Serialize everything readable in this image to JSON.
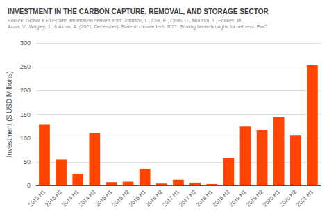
{
  "chart_data": {
    "type": "bar",
    "title": "INVESTMENT IN THE CARBON CAPTURE, REMOVAL, AND STORAGE SECTOR",
    "annotations": [
      "Source: Global X ETFs with information derived from: Johnson, L., Cox, E., Chan, D., Moussa, T., Foakes, M.,",
      "Arora, V., Wrigley, J., & Azhar, A. (2021, December). State of climate tech 2021: Scaling breakthroughs for net zero. PwC."
    ],
    "ylabel": "Investment ($ USD Millions)",
    "categories": [
      "2013 H1",
      "2013 H2",
      "2014 H1",
      "2014 H2",
      "2015 H1",
      "2015 H2",
      "2016 H1",
      "2016 H2",
      "2017 H1",
      "2017 H2",
      "2018 H1",
      "2018 H2",
      "2019 H1",
      "2019 H2",
      "2020 H1",
      "2020 H2",
      "2021 H1"
    ],
    "values": [
      128,
      55,
      25,
      110,
      7,
      8,
      35,
      4,
      12,
      6,
      3,
      58,
      124,
      117,
      145,
      105,
      253
    ],
    "color": "#FF4500",
    "ylim": [
      0,
      300
    ],
    "yticks": [
      0,
      50,
      100,
      150,
      200,
      250,
      300
    ],
    "grid": true
  }
}
